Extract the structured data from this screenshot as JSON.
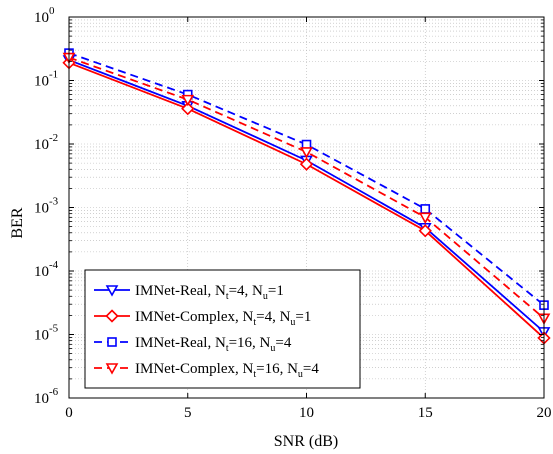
{
  "chart_data": {
    "type": "line",
    "title": "",
    "xlabel": "SNR (dB)",
    "ylabel": "BER",
    "xlim": [
      0,
      20
    ],
    "ylim_exp": [
      -6,
      0
    ],
    "yscale": "log",
    "grid": true,
    "legend_placement": "bottom-left",
    "x": [
      0,
      5,
      10,
      15,
      20
    ],
    "x_ticks": [
      "0",
      "5",
      "10",
      "15",
      "20"
    ],
    "y_ticks": [
      {
        "base": "10",
        "exp": "0"
      },
      {
        "base": "10",
        "exp": "-1"
      },
      {
        "base": "10",
        "exp": "-2"
      },
      {
        "base": "10",
        "exp": "-3"
      },
      {
        "base": "10",
        "exp": "-4"
      },
      {
        "base": "10",
        "exp": "-5"
      },
      {
        "base": "10",
        "exp": "-6"
      }
    ],
    "series": [
      {
        "name": "IMNet-Real, N_t=4, N_u=1",
        "legend": {
          "a": "IMNet-Real, N",
          "s1": "t",
          "b": "=4, N",
          "s2": "u",
          "c": "=1"
        },
        "color": "#0000ff",
        "dash": "solid",
        "marker": "triangle-down",
        "values": [
          0.21,
          0.04,
          0.0055,
          0.00048,
          1.1e-05
        ]
      },
      {
        "name": "IMNet-Complex, N_t=4, N_u=1",
        "legend": {
          "a": "IMNet-Complex, N",
          "s1": "t",
          "b": "=4, N",
          "s2": "u",
          "c": "=1"
        },
        "color": "#ff0000",
        "dash": "solid",
        "marker": "diamond",
        "values": [
          0.19,
          0.036,
          0.0048,
          0.00043,
          8.8e-06
        ]
      },
      {
        "name": "IMNet-Real, N_t=16, N_u=4",
        "legend": {
          "a": "IMNet-Real, N",
          "s1": "t",
          "b": "=16, N",
          "s2": "u",
          "c": "=4"
        },
        "color": "#0000ff",
        "dash": "dashed",
        "marker": "square",
        "values": [
          0.27,
          0.06,
          0.0098,
          0.00095,
          2.9e-05
        ]
      },
      {
        "name": "IMNet-Complex, N_t=16, N_u=4",
        "legend": {
          "a": "IMNet-Complex, N",
          "s1": "t",
          "b": "=16, N",
          "s2": "u",
          "c": "=4"
        },
        "color": "#ff0000",
        "dash": "dashed",
        "marker": "triangle-down",
        "values": [
          0.23,
          0.05,
          0.0075,
          0.0007,
          1.8e-05
        ]
      }
    ]
  }
}
